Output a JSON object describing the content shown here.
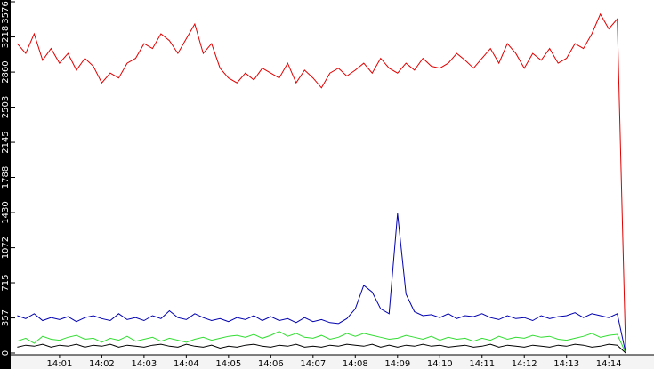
{
  "chart_data": {
    "type": "line",
    "x": [
      840,
      840.2,
      840.4,
      840.6,
      840.8,
      841,
      841.2,
      841.4,
      841.6,
      841.8,
      842,
      842.2,
      842.4,
      842.6,
      842.8,
      843,
      843.2,
      843.4,
      843.6,
      843.8,
      844,
      844.2,
      844.4,
      844.6,
      844.8,
      845,
      845.2,
      845.4,
      845.6,
      845.8,
      846,
      846.2,
      846.4,
      846.6,
      846.8,
      847,
      847.2,
      847.4,
      847.6,
      847.8,
      848,
      848.2,
      848.4,
      848.6,
      848.8,
      849,
      849.2,
      849.4,
      849.6,
      849.8,
      850,
      850.2,
      850.4,
      850.6,
      850.8,
      851,
      851.2,
      851.4,
      851.6,
      851.8,
      852,
      852.2,
      852.4,
      852.6,
      852.8,
      853,
      853.2,
      853.4,
      853.6,
      853.8,
      854,
      854.2,
      854.4
    ],
    "series": [
      {
        "color": "#e00000",
        "values": [
          3150,
          3050,
          3250,
          2980,
          3100,
          2950,
          3050,
          2880,
          3000,
          2920,
          2750,
          2850,
          2800,
          2950,
          3000,
          3150,
          3100,
          3250,
          3180,
          3050,
          3200,
          3350,
          3050,
          3150,
          2900,
          2800,
          2750,
          2850,
          2780,
          2900,
          2850,
          2800,
          2950,
          2750,
          2880,
          2800,
          2700,
          2850,
          2900,
          2820,
          2880,
          2950,
          2850,
          3000,
          2900,
          2850,
          2950,
          2880,
          3000,
          2920,
          2900,
          2950,
          3050,
          2980,
          2900,
          3000,
          3100,
          2950,
          3150,
          3050,
          2900,
          3050,
          2980,
          3100,
          2950,
          3000,
          3150,
          3100,
          3250,
          3450,
          3300,
          3400,
          0
        ]
      },
      {
        "color": "#0000b0",
        "values": [
          380,
          350,
          400,
          330,
          360,
          340,
          370,
          320,
          360,
          380,
          350,
          330,
          400,
          340,
          360,
          330,
          380,
          350,
          430,
          360,
          340,
          400,
          360,
          330,
          350,
          320,
          360,
          340,
          380,
          330,
          370,
          330,
          350,
          310,
          360,
          320,
          340,
          310,
          300,
          350,
          450,
          690,
          620,
          450,
          400,
          1420,
          600,
          420,
          380,
          390,
          360,
          400,
          350,
          380,
          370,
          400,
          360,
          340,
          380,
          350,
          360,
          330,
          380,
          350,
          370,
          380,
          410,
          360,
          400,
          380,
          360,
          400,
          0
        ]
      },
      {
        "color": "#33dd33",
        "values": [
          120,
          150,
          100,
          170,
          140,
          130,
          160,
          180,
          140,
          150,
          110,
          150,
          130,
          170,
          120,
          140,
          160,
          120,
          150,
          130,
          110,
          140,
          160,
          130,
          150,
          170,
          180,
          160,
          190,
          150,
          180,
          220,
          170,
          200,
          160,
          150,
          180,
          140,
          160,
          200,
          170,
          200,
          180,
          160,
          140,
          150,
          180,
          160,
          140,
          170,
          130,
          160,
          140,
          150,
          120,
          150,
          130,
          170,
          140,
          160,
          150,
          180,
          160,
          170,
          140,
          130,
          150,
          170,
          200,
          160,
          180,
          190,
          0
        ]
      },
      {
        "color": "#000000",
        "values": [
          60,
          80,
          70,
          90,
          60,
          80,
          70,
          90,
          60,
          80,
          70,
          90,
          60,
          80,
          70,
          60,
          80,
          90,
          70,
          60,
          90,
          70,
          60,
          80,
          50,
          70,
          60,
          80,
          90,
          70,
          60,
          80,
          70,
          90,
          60,
          70,
          60,
          80,
          70,
          90,
          80,
          70,
          90,
          60,
          80,
          60,
          80,
          70,
          90,
          70,
          80,
          60,
          70,
          80,
          60,
          70,
          90,
          60,
          80,
          70,
          60,
          80,
          70,
          60,
          80,
          70,
          90,
          80,
          60,
          70,
          90,
          80,
          0
        ]
      }
    ],
    "xlim": [
      839.97,
      855.07
    ],
    "xticks": [
      {
        "value": 841,
        "label": "14:01"
      },
      {
        "value": 842,
        "label": "14:02"
      },
      {
        "value": 843,
        "label": "14:03"
      },
      {
        "value": 844,
        "label": "14:04"
      },
      {
        "value": 845,
        "label": "14:05"
      },
      {
        "value": 846,
        "label": "14:06"
      },
      {
        "value": 847,
        "label": "14:07"
      },
      {
        "value": 848,
        "label": "14:08"
      },
      {
        "value": 849,
        "label": "14:09"
      },
      {
        "value": 850,
        "label": "14:10"
      },
      {
        "value": 851,
        "label": "14:11"
      },
      {
        "value": 852,
        "label": "14:12"
      },
      {
        "value": 853,
        "label": "14:13"
      },
      {
        "value": 854,
        "label": "14:14"
      }
    ],
    "ylim": [
      0,
      3576
    ],
    "yticks": [
      0,
      357,
      715,
      1072,
      1430,
      1788,
      2145,
      2503,
      2860,
      3218,
      3576
    ]
  }
}
